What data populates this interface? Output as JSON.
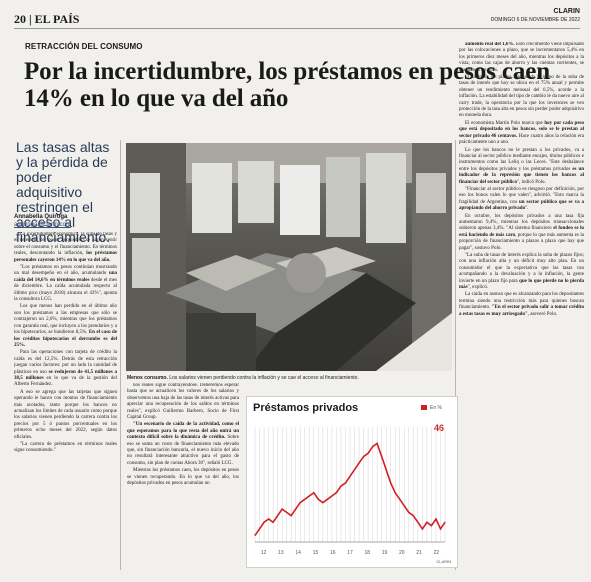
{
  "header": {
    "page": "20",
    "section": "EL PAÍS",
    "paper": "CLARIN",
    "date": "DOMINGO 6 DE NOVIEMBRE DE 2022"
  },
  "article": {
    "kicker": "RETRACCIÓN DEL CONSUMO",
    "headline": "Por la incertidumbre, los préstamos en pesos caen 14% en lo que va del año",
    "standfirst": "Las tasas altas y la pérdida de poder adquisitivo restringen el acceso al financiamiento.",
    "author": "Annabella Quiroga",
    "email": "aquiroga@clarin.com",
    "caption_bold": "Menos consumo.",
    "caption": " Los salarios vienen perdiendo contra la inflación y se cae el acceso al financiamiento."
  },
  "chart_data": {
    "type": "line",
    "title": "Préstamos privados",
    "unit": "En %",
    "last_value_label": "46",
    "x_ticks": [
      "12",
      "13",
      "14",
      "15",
      "16",
      "17",
      "18",
      "19",
      "20",
      "21",
      "22"
    ],
    "ylabel": "En %",
    "series": [
      {
        "values": [
          42,
          44,
          46,
          47,
          46,
          48,
          50,
          49,
          48,
          50,
          52,
          53,
          54,
          55,
          53,
          52,
          53,
          54,
          55,
          57,
          58,
          60,
          62,
          64,
          66,
          67,
          69,
          70,
          66,
          62,
          58,
          55,
          53,
          51,
          49,
          48,
          46,
          44,
          46,
          45,
          47,
          44,
          46
        ]
      }
    ],
    "ylim": [
      40,
      75
    ],
    "source": "CLARÍN"
  }
}
